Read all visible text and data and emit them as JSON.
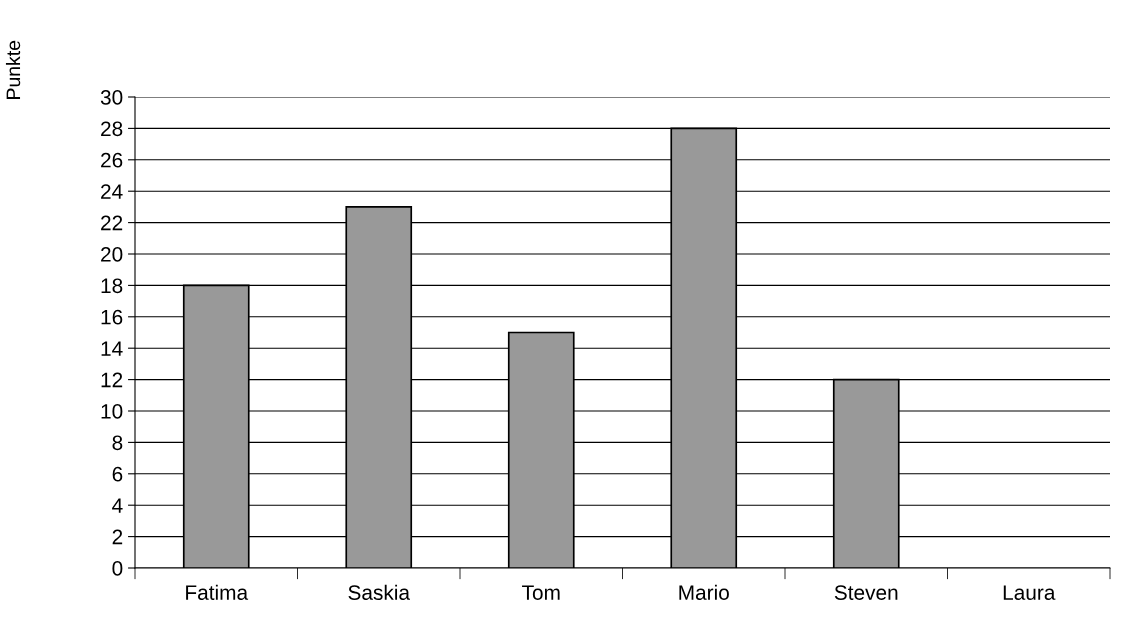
{
  "chart_data": {
    "type": "bar",
    "ylabel": "Punkte",
    "categories": [
      "Fatima",
      "Saskia",
      "Tom",
      "Mario",
      "Steven",
      "Laura"
    ],
    "values": [
      18,
      23,
      15,
      28,
      12,
      null
    ],
    "color": "#999999",
    "ylim": [
      0,
      30
    ],
    "yticks": [
      0,
      2,
      4,
      6,
      8,
      10,
      12,
      14,
      16,
      18,
      20,
      22,
      24,
      26,
      28,
      30
    ],
    "grid": "y",
    "legend": false
  }
}
